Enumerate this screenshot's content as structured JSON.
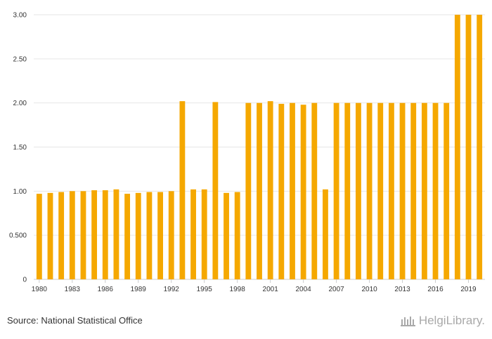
{
  "colors": {
    "bar": "#F5A800",
    "grid": "#e6e6e6",
    "axis": "#cccccc",
    "text": "#333333",
    "brand": "#a9a9a9"
  },
  "footer": {
    "source": "Source: National Statistical Office",
    "brand": "HelgiLibrary."
  },
  "chart_data": {
    "type": "bar",
    "title": "",
    "xlabel": "",
    "ylabel": "",
    "ylim": [
      0,
      3
    ],
    "yticks": [
      0,
      0.5,
      1,
      1.5,
      2,
      2.5,
      3
    ],
    "ytick_labels": [
      "0",
      "0.500",
      "1.00",
      "1.50",
      "2.00",
      "2.50",
      "3.00"
    ],
    "categories": [
      1980,
      1981,
      1982,
      1983,
      1984,
      1985,
      1986,
      1987,
      1988,
      1989,
      1990,
      1991,
      1992,
      1993,
      1994,
      1995,
      1996,
      1997,
      1998,
      1999,
      2000,
      2001,
      2002,
      2003,
      2004,
      2005,
      2006,
      2007,
      2008,
      2009,
      2010,
      2011,
      2012,
      2013,
      2014,
      2015,
      2016,
      2017,
      2018,
      2019,
      2020
    ],
    "x_tick_labels": [
      "1980",
      "1983",
      "1986",
      "1989",
      "1992",
      "1995",
      "1998",
      "2001",
      "2004",
      "2007",
      "2010",
      "2013",
      "2016",
      "2019"
    ],
    "values": [
      0.97,
      0.98,
      0.99,
      1.0,
      1.0,
      1.01,
      1.01,
      1.02,
      0.97,
      0.98,
      0.99,
      0.99,
      1.0,
      2.02,
      1.02,
      1.02,
      2.01,
      0.98,
      0.99,
      2.0,
      2.0,
      2.02,
      1.99,
      2.0,
      1.98,
      2.0,
      1.02,
      2.0,
      2.0,
      2.0,
      2.0,
      2.0,
      2.0,
      2.0,
      2.0,
      2.0,
      2.0,
      2.0,
      3.0,
      3.0,
      3.0
    ]
  }
}
